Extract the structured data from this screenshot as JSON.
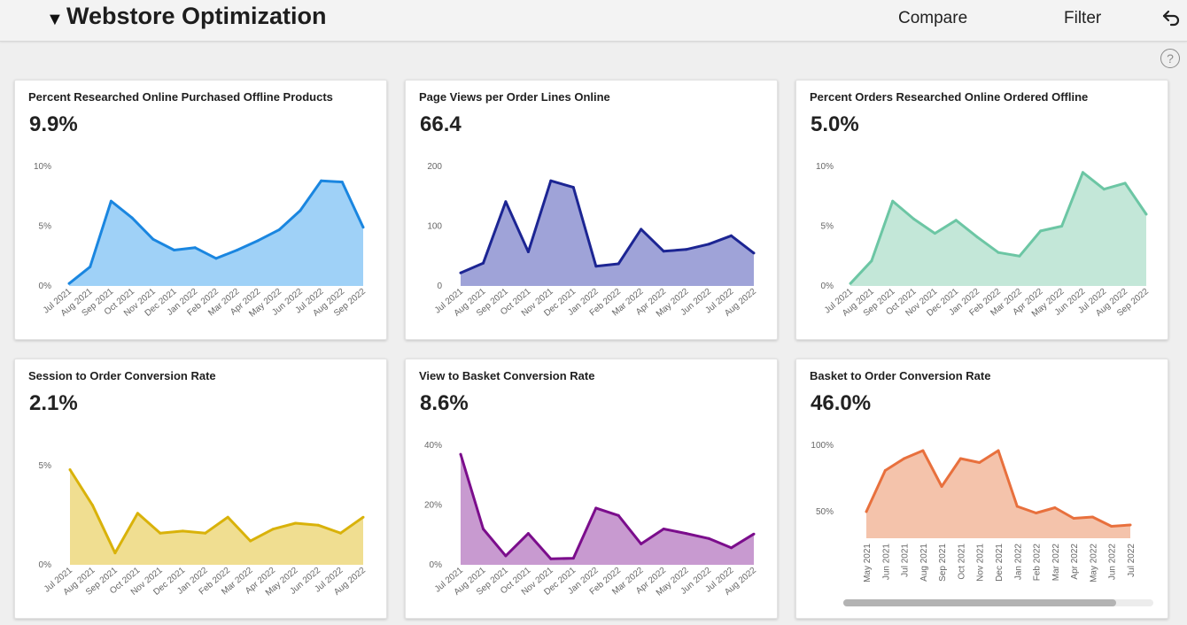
{
  "header": {
    "title": "Webstore Optimization",
    "compare_label": "Compare",
    "filter_label": "Filter",
    "help_label": "?"
  },
  "cards": [
    {
      "title": "Percent Researched Online Purchased Offline Products",
      "value": "9.9%",
      "fill": "#9fd1f7",
      "stroke": "#1a86e0"
    },
    {
      "title": "Page Views per Order Lines Online",
      "value": "66.4",
      "fill": "#9fa3d8",
      "stroke": "#1c2593"
    },
    {
      "title": "Percent Orders Researched Online Ordered Offline",
      "value": "5.0%",
      "fill": "#c3e7d8",
      "stroke": "#6cc6a4"
    },
    {
      "title": "Session to Order Conversion Rate",
      "value": "2.1%",
      "fill": "#f0de91",
      "stroke": "#d9b20a"
    },
    {
      "title": "View to Basket Conversion Rate",
      "value": "8.6%",
      "fill": "#c89ad0",
      "stroke": "#7b0d8c"
    },
    {
      "title": "Basket to Order Conversion Rate",
      "value": "46.0%",
      "fill": "#f4c3ab",
      "stroke": "#e8703d"
    }
  ],
  "chart_data": [
    {
      "type": "area",
      "title": "Percent Researched Online Purchased Offline Products",
      "x": [
        "Jul 2021",
        "Aug 2021",
        "Sep 2021",
        "Oct 2021",
        "Nov 2021",
        "Dec 2021",
        "Jan 2022",
        "Feb 2022",
        "Mar 2022",
        "Apr 2022",
        "May 2022",
        "Jun 2022",
        "Jul 2022",
        "Aug 2022",
        "Sep 2022"
      ],
      "values": [
        0.2,
        1.6,
        7.1,
        5.7,
        3.9,
        3.0,
        3.2,
        2.3,
        3.0,
        3.8,
        4.7,
        6.3,
        8.8,
        8.7,
        4.9
      ],
      "ylim": [
        0,
        10
      ],
      "yticks": [
        0,
        5,
        10
      ],
      "ytick_labels": [
        "0%",
        "5%",
        "10%"
      ],
      "xtick_rotation": "diagonal",
      "grid": false
    },
    {
      "type": "area",
      "title": "Page Views per Order Lines Online",
      "x": [
        "Jul 2021",
        "Aug 2021",
        "Sep 2021",
        "Oct 2021",
        "Nov 2021",
        "Dec 2021",
        "Jan 2022",
        "Feb 2022",
        "Mar 2022",
        "Apr 2022",
        "May 2022",
        "Jun 2022",
        "Jul 2022",
        "Aug 2022"
      ],
      "values": [
        22,
        38,
        141,
        57,
        176,
        165,
        33,
        37,
        95,
        58,
        61,
        70,
        84,
        55
      ],
      "ylim": [
        0,
        200
      ],
      "yticks": [
        0,
        100,
        200
      ],
      "ytick_labels": [
        "0",
        "100",
        "200"
      ],
      "xtick_rotation": "diagonal",
      "grid": false
    },
    {
      "type": "area",
      "title": "Percent Orders Researched Online Ordered Offline",
      "x": [
        "Jul 2021",
        "Aug 2021",
        "Sep 2021",
        "Oct 2021",
        "Nov 2021",
        "Dec 2021",
        "Jan 2022",
        "Feb 2022",
        "Mar 2022",
        "Apr 2022",
        "May 2022",
        "Jun 2022",
        "Jul 2022",
        "Aug 2022",
        "Sep 2022"
      ],
      "values": [
        0.2,
        2.1,
        7.1,
        5.6,
        4.4,
        5.5,
        4.1,
        2.8,
        2.5,
        4.6,
        5.0,
        9.5,
        8.1,
        8.6,
        6.0
      ],
      "ylim": [
        0,
        10
      ],
      "yticks": [
        0,
        5,
        10
      ],
      "ytick_labels": [
        "0%",
        "5%",
        "10%"
      ],
      "xtick_rotation": "diagonal",
      "grid": false
    },
    {
      "type": "area",
      "title": "Session to Order Conversion Rate",
      "x": [
        "Jul 2021",
        "Aug 2021",
        "Sep 2021",
        "Oct 2021",
        "Nov 2021",
        "Dec 2021",
        "Jan 2022",
        "Feb 2022",
        "Mar 2022",
        "Apr 2022",
        "May 2022",
        "Jun 2022",
        "Jul 2022",
        "Aug 2022"
      ],
      "values": [
        4.8,
        3.0,
        0.6,
        2.6,
        1.6,
        1.7,
        1.6,
        2.4,
        1.2,
        1.8,
        2.1,
        2.0,
        1.6,
        2.4
      ],
      "ylim": [
        0,
        5
      ],
      "yticks": [
        0,
        5
      ],
      "ytick_labels": [
        "0%",
        "5%"
      ],
      "xtick_rotation": "diagonal",
      "grid": false
    },
    {
      "type": "area",
      "title": "View to Basket Conversion Rate",
      "x": [
        "Jul 2021",
        "Aug 2021",
        "Sep 2021",
        "Oct 2021",
        "Nov 2021",
        "Dec 2021",
        "Jan 2022",
        "Feb 2022",
        "Mar 2022",
        "Apr 2022",
        "May 2022",
        "Jun 2022",
        "Jul 2022",
        "Aug 2022"
      ],
      "values": [
        37,
        12,
        3,
        10.5,
        2,
        2.2,
        19,
        16.5,
        7,
        12,
        10.5,
        8.8,
        5.7,
        10.3
      ],
      "ylim": [
        0,
        40
      ],
      "yticks": [
        0,
        20,
        40
      ],
      "ytick_labels": [
        "0%",
        "20%",
        "40%"
      ],
      "xtick_rotation": "diagonal",
      "grid": false
    },
    {
      "type": "area",
      "title": "Basket to Order Conversion Rate",
      "x": [
        "May 2021",
        "Jun 2021",
        "Jul 2021",
        "Aug 2021",
        "Sep 2021",
        "Oct 2021",
        "Nov 2021",
        "Dec 2021",
        "Jan 2022",
        "Feb 2022",
        "Mar 2022",
        "Apr 2022",
        "May 2022",
        "Jun 2022",
        "Jul 2022"
      ],
      "values": [
        50,
        81,
        90,
        96,
        69,
        90,
        87,
        96,
        54,
        49,
        53,
        45,
        46,
        39,
        40
      ],
      "ylim": [
        30,
        100
      ],
      "yticks": [
        50,
        100
      ],
      "ytick_labels": [
        "50%",
        "100%"
      ],
      "xtick_rotation": "vertical",
      "grid": false
    }
  ]
}
